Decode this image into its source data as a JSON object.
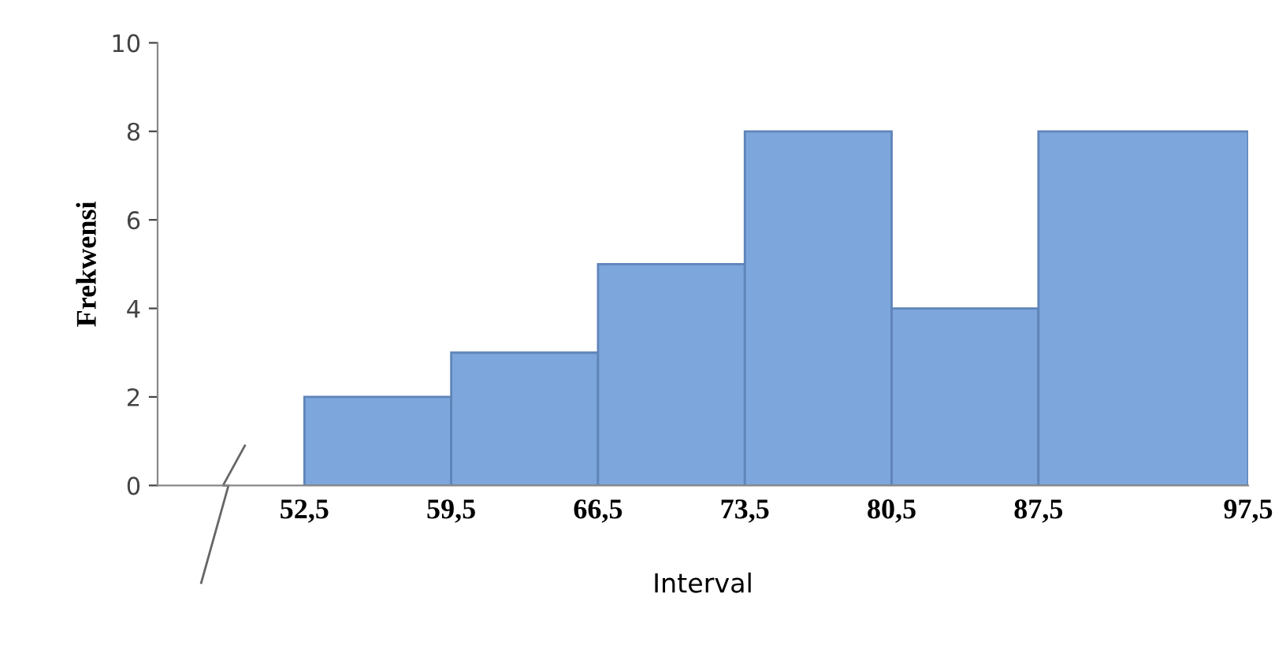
{
  "chart_data": {
    "type": "histogram",
    "bins": [
      52.5,
      59.5,
      66.5,
      73.5,
      80.5,
      87.5,
      97.5
    ],
    "values": [
      2,
      3,
      5,
      8,
      4,
      8
    ],
    "color": "#7da7dc",
    "xlabel": "Interval",
    "ylabel": "Frekwensi",
    "xlim": [
      45.5,
      97.5
    ],
    "xticks": [
      {
        "value": 52.5,
        "label": "52,5"
      },
      {
        "value": 59.5,
        "label": "59,5"
      },
      {
        "value": 66.5,
        "label": "66,5"
      },
      {
        "value": 73.5,
        "label": "73,5"
      },
      {
        "value": 80.5,
        "label": "80,5"
      },
      {
        "value": 87.5,
        "label": "87,5"
      },
      {
        "value": 97.5,
        "label": "97,5"
      }
    ],
    "ylim": [
      0,
      10
    ],
    "yticks": [
      0,
      2,
      4,
      6,
      8,
      10
    ],
    "grid": false,
    "legend": false
  }
}
